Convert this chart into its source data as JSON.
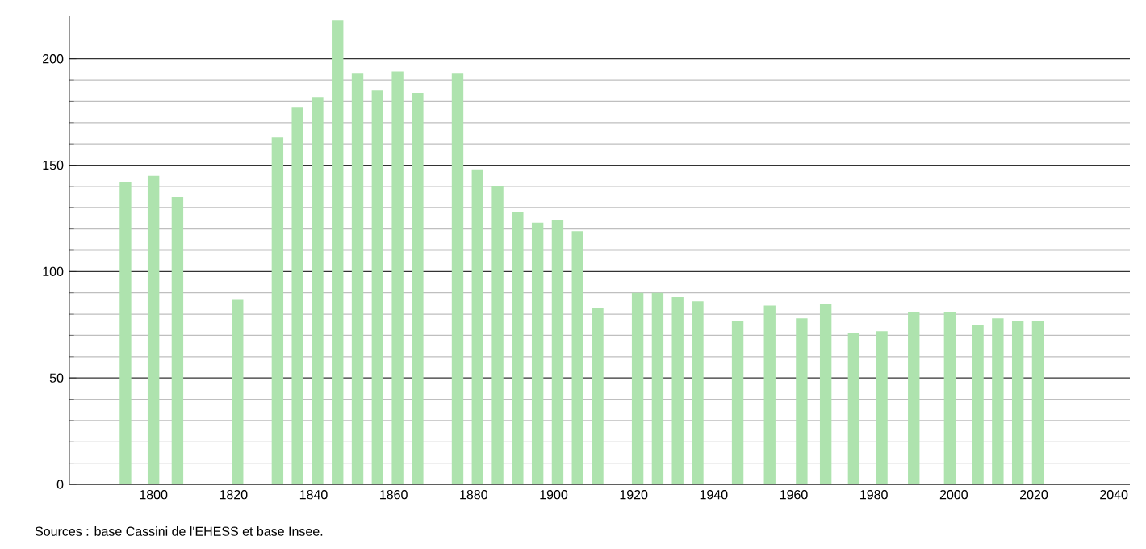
{
  "chart_data": {
    "type": "bar",
    "color": "#aee3ae",
    "x": [
      1793,
      1800,
      1806,
      1821,
      1831,
      1836,
      1841,
      1846,
      1851,
      1856,
      1861,
      1866,
      1876,
      1881,
      1886,
      1891,
      1896,
      1901,
      1906,
      1911,
      1921,
      1926,
      1931,
      1936,
      1946,
      1954,
      1962,
      1968,
      1975,
      1982,
      1990,
      1999,
      2006,
      2011,
      2016,
      2021
    ],
    "values": [
      142,
      145,
      135,
      87,
      163,
      177,
      182,
      218,
      193,
      185,
      194,
      184,
      193,
      148,
      140,
      128,
      123,
      124,
      119,
      83,
      90,
      90,
      88,
      86,
      77,
      84,
      78,
      85,
      71,
      72,
      81,
      81,
      75,
      78,
      77,
      77
    ],
    "xlim": [
      1779,
      2044
    ],
    "ylim": [
      0,
      220
    ],
    "xticks": [
      1800,
      1820,
      1840,
      1860,
      1880,
      1900,
      1920,
      1940,
      1960,
      1980,
      2000,
      2020,
      2040
    ],
    "yticks": [
      0,
      50,
      100,
      150,
      200
    ],
    "grid": "y",
    "annotations": [
      "Sources : base Cassini de l'EHESS et base Insee."
    ]
  }
}
